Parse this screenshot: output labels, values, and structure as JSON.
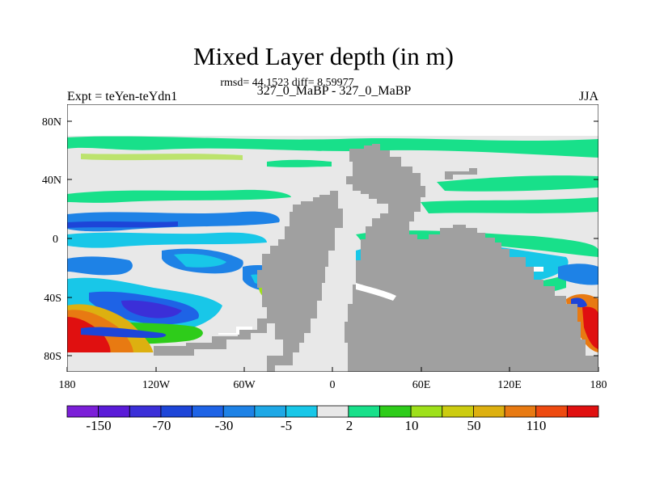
{
  "title": "Mixed Layer depth (in m)",
  "stats": "rmsd= 44.1523 diff= 8.59977",
  "subtitle_center": "327_0_MaBP - 327_0_MaBP",
  "subtitle_left": "Expt = teYen-teYdn1",
  "subtitle_right": "JJA",
  "axes": {
    "lat_ticks": [
      "80N",
      "40N",
      "0",
      "40S",
      "80S"
    ],
    "lon_ticks": [
      "180",
      "120W",
      "60W",
      "0",
      "60E",
      "120E",
      "180"
    ]
  },
  "colors": {
    "land": "#a0a0a0",
    "near_zero": "#e8e8e8",
    "levels": [
      "#7b1fd8",
      "#5a1bd8",
      "#3b2fd8",
      "#1d45d8",
      "#1e63e6",
      "#1e82e6",
      "#1ea8e6",
      "#18c7e8",
      "#e8e8e8",
      "#18e08a",
      "#2ecc1a",
      "#9ee01a",
      "#cccc10",
      "#ddb010",
      "#e87a12",
      "#ee4a10",
      "#e01010"
    ]
  },
  "colorbar": {
    "labels": [
      "-150",
      "-70",
      "-30",
      "-5",
      "2",
      "10",
      "50",
      "110"
    ]
  }
}
